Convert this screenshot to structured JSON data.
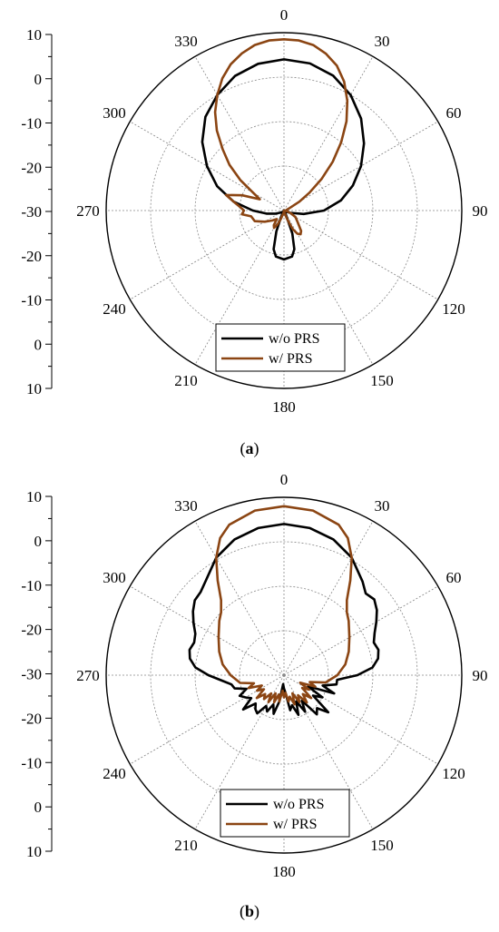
{
  "chart_data": [
    {
      "type": "polar-line",
      "caption_letter": "a",
      "radial_scale_labels": [
        "10",
        "0",
        "-10",
        "-20",
        "-30",
        "-20",
        "-10",
        "0",
        "10"
      ],
      "rlim": [
        -30,
        10
      ],
      "angle_labels": [
        "0",
        "30",
        "60",
        "90",
        "120",
        "150",
        "180",
        "210",
        "240",
        "270",
        "300",
        "330"
      ],
      "angle_direction": "clockwise",
      "angle_zero": "top",
      "grid": true,
      "legend_position": "bottom-center",
      "series": [
        {
          "name": "w/o PRS",
          "color": "#000000",
          "points": [
            [
              0,
              4
            ],
            [
              10,
              3.6
            ],
            [
              20,
              2.3
            ],
            [
              30,
              0
            ],
            [
              40,
              -3
            ],
            [
              50,
              -6.5
            ],
            [
              60,
              -10
            ],
            [
              70,
              -13.5
            ],
            [
              80,
              -17
            ],
            [
              90,
              -21
            ],
            [
              100,
              -25.5
            ],
            [
              110,
              -28.5
            ],
            [
              120,
              -29.5
            ],
            [
              130,
              -29.5
            ],
            [
              140,
              -30
            ],
            [
              150,
              -30
            ],
            [
              155,
              -29
            ],
            [
              160,
              -24.5
            ],
            [
              165,
              -21
            ],
            [
              170,
              -19.5
            ],
            [
              180,
              -19
            ],
            [
              190,
              -19.5
            ],
            [
              195,
              -21
            ],
            [
              200,
              -25
            ],
            [
              205,
              -28.5
            ],
            [
              210,
              -29.5
            ],
            [
              220,
              -29.5
            ],
            [
              230,
              -29.5
            ],
            [
              240,
              -29
            ],
            [
              250,
              -28
            ],
            [
              260,
              -26
            ],
            [
              270,
              -23
            ],
            [
              280,
              -18.5
            ],
            [
              290,
              -14
            ],
            [
              300,
              -10
            ],
            [
              310,
              -6
            ],
            [
              320,
              -2.5
            ],
            [
              330,
              0
            ],
            [
              340,
              2.2
            ],
            [
              350,
              3.5
            ],
            [
              360,
              4
            ]
          ]
        },
        {
          "name": "w/ PRS",
          "color": "#8B4513",
          "points": [
            [
              0,
              8.5
            ],
            [
              5,
              8.4
            ],
            [
              10,
              7.8
            ],
            [
              15,
              6.5
            ],
            [
              20,
              4.7
            ],
            [
              25,
              2
            ],
            [
              30,
              -1.5
            ],
            [
              35,
              -5.5
            ],
            [
              40,
              -10
            ],
            [
              45,
              -14.5
            ],
            [
              50,
              -19
            ],
            [
              55,
              -23
            ],
            [
              60,
              -26
            ],
            [
              70,
              -29
            ],
            [
              80,
              -29.5
            ],
            [
              100,
              -29.5
            ],
            [
              110,
              -28.5
            ],
            [
              120,
              -27
            ],
            [
              130,
              -26
            ],
            [
              140,
              -24
            ],
            [
              145,
              -23.5
            ],
            [
              150,
              -24
            ],
            [
              155,
              -25.5
            ],
            [
              160,
              -28
            ],
            [
              170,
              -29.5
            ],
            [
              180,
              -30
            ],
            [
              190,
              -29.5
            ],
            [
              200,
              -28
            ],
            [
              205,
              -26.5
            ],
            [
              210,
              -25.5
            ],
            [
              215,
              -26
            ],
            [
              220,
              -27.5
            ],
            [
              230,
              -26.5
            ],
            [
              240,
              -25
            ],
            [
              250,
              -23
            ],
            [
              260,
              -22.5
            ],
            [
              265,
              -20.5
            ],
            [
              270,
              -21
            ],
            [
              275,
              -20
            ],
            [
              280,
              -18.5
            ],
            [
              285,
              -16.5
            ],
            [
              290,
              -20
            ],
            [
              295,
              -24
            ],
            [
              300,
              -22
            ],
            [
              305,
              -18
            ],
            [
              310,
              -14
            ],
            [
              315,
              -10.5
            ],
            [
              320,
              -6.5
            ],
            [
              325,
              -3
            ],
            [
              330,
              0
            ],
            [
              335,
              2.8
            ],
            [
              340,
              5
            ],
            [
              345,
              6.6
            ],
            [
              350,
              7.8
            ],
            [
              355,
              8.4
            ],
            [
              360,
              8.5
            ]
          ]
        }
      ]
    },
    {
      "type": "polar-line",
      "caption_letter": "b",
      "radial_scale_labels": [
        "10",
        "0",
        "-10",
        "-20",
        "-30",
        "-20",
        "-10",
        "0",
        "10"
      ],
      "rlim": [
        -30,
        10
      ],
      "angle_labels": [
        "0",
        "30",
        "60",
        "90",
        "120",
        "150",
        "180",
        "210",
        "240",
        "270",
        "300",
        "330"
      ],
      "angle_direction": "clockwise",
      "angle_zero": "top",
      "grid": true,
      "legend_position": "bottom-center",
      "series": [
        {
          "name": "w/o PRS",
          "color": "#000000",
          "points": [
            [
              0,
              4
            ],
            [
              10,
              3.6
            ],
            [
              20,
              2.5
            ],
            [
              30,
              0.5
            ],
            [
              40,
              -2.5
            ],
            [
              45,
              -4
            ],
            [
              50,
              -3.5
            ],
            [
              55,
              -4.5
            ],
            [
              60,
              -6
            ],
            [
              65,
              -7.5
            ],
            [
              70,
              -8.5
            ],
            [
              75,
              -8
            ],
            [
              80,
              -8.5
            ],
            [
              85,
              -10
            ],
            [
              90,
              -13.5
            ],
            [
              95,
              -18
            ],
            [
              100,
              -18
            ],
            [
              105,
              -21
            ],
            [
              110,
              -18
            ],
            [
              115,
              -24
            ],
            [
              120,
              -20
            ],
            [
              125,
              -22
            ],
            [
              130,
              -17
            ],
            [
              135,
              -19.5
            ],
            [
              140,
              -18.5
            ],
            [
              145,
              -23
            ],
            [
              150,
              -20.5
            ],
            [
              155,
              -23.5
            ],
            [
              160,
              -20.5
            ],
            [
              165,
              -23
            ],
            [
              170,
              -22
            ],
            [
              175,
              -26
            ],
            [
              180,
              -27
            ],
            [
              185,
              -28
            ],
            [
              190,
              -24
            ],
            [
              195,
              -21
            ],
            [
              200,
              -23
            ],
            [
              205,
              -21
            ],
            [
              210,
              -22
            ],
            [
              215,
              -19.5
            ],
            [
              220,
              -20
            ],
            [
              225,
              -21
            ],
            [
              230,
              -18
            ],
            [
              235,
              -21
            ],
            [
              240,
              -20
            ],
            [
              245,
              -19
            ],
            [
              250,
              -21
            ],
            [
              255,
              -18.5
            ],
            [
              260,
              -18
            ],
            [
              265,
              -16
            ],
            [
              270,
              -13
            ],
            [
              275,
              -10
            ],
            [
              280,
              -8.5
            ],
            [
              285,
              -8
            ],
            [
              290,
              -8.5
            ],
            [
              295,
              -8
            ],
            [
              300,
              -6.5
            ],
            [
              305,
              -5
            ],
            [
              310,
              -3.8
            ],
            [
              315,
              -3.5
            ],
            [
              320,
              -2.5
            ],
            [
              330,
              0.5
            ],
            [
              340,
              2.5
            ],
            [
              350,
              3.6
            ],
            [
              360,
              4
            ]
          ]
        },
        {
          "name": "w/ PRS",
          "color": "#8B4513",
          "points": [
            [
              0,
              8
            ],
            [
              10,
              7.6
            ],
            [
              20,
              6
            ],
            [
              25,
              4
            ],
            [
              30,
              0.5
            ],
            [
              35,
              -4
            ],
            [
              40,
              -8
            ],
            [
              45,
              -10
            ],
            [
              50,
              -11
            ],
            [
              60,
              -13
            ],
            [
              70,
              -14.5
            ],
            [
              80,
              -16
            ],
            [
              90,
              -18
            ],
            [
              100,
              -20.5
            ],
            [
              105,
              -24
            ],
            [
              110,
              -22.5
            ],
            [
              115,
              -26
            ],
            [
              120,
              -23.5
            ],
            [
              125,
              -25
            ],
            [
              130,
              -22
            ],
            [
              135,
              -24
            ],
            [
              140,
              -22
            ],
            [
              145,
              -24.5
            ],
            [
              150,
              -23
            ],
            [
              155,
              -25.5
            ],
            [
              160,
              -23
            ],
            [
              165,
              -25
            ],
            [
              170,
              -24
            ],
            [
              175,
              -26
            ],
            [
              180,
              -25
            ],
            [
              185,
              -26.5
            ],
            [
              190,
              -24
            ],
            [
              195,
              -25.5
            ],
            [
              200,
              -23.5
            ],
            [
              205,
              -25.5
            ],
            [
              210,
              -23
            ],
            [
              215,
              -25
            ],
            [
              220,
              -23
            ],
            [
              225,
              -24
            ],
            [
              230,
              -22
            ],
            [
              235,
              -24.5
            ],
            [
              240,
              -23
            ],
            [
              245,
              -24.5
            ],
            [
              250,
              -21.5
            ],
            [
              255,
              -23
            ],
            [
              260,
              -20
            ],
            [
              270,
              -18
            ],
            [
              280,
              -16
            ],
            [
              290,
              -14.5
            ],
            [
              300,
              -13
            ],
            [
              310,
              -11
            ],
            [
              315,
              -10
            ],
            [
              320,
              -8
            ],
            [
              325,
              -4
            ],
            [
              330,
              0.5
            ],
            [
              335,
              4
            ],
            [
              340,
              6
            ],
            [
              350,
              7.6
            ],
            [
              360,
              8
            ]
          ]
        }
      ]
    }
  ]
}
